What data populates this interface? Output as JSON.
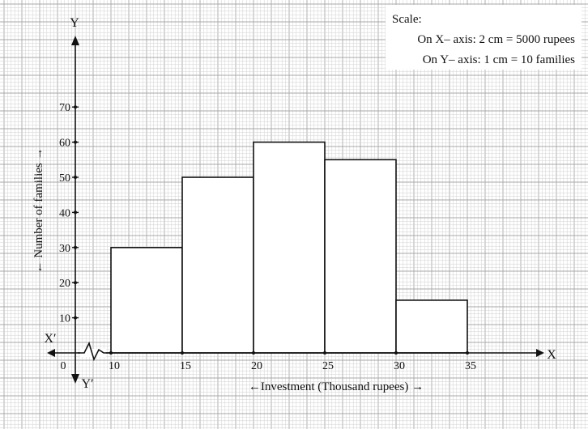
{
  "chart_data": {
    "type": "bar",
    "subtype": "histogram",
    "bins": [
      {
        "from": 10,
        "to": 15,
        "value": 30
      },
      {
        "from": 15,
        "to": 20,
        "value": 50
      },
      {
        "from": 20,
        "to": 25,
        "value": 60
      },
      {
        "from": 25,
        "to": 30,
        "value": 55
      },
      {
        "from": 30,
        "to": 35,
        "value": 15
      }
    ],
    "xlabel": "←Investment (Thousand rupees) →",
    "ylabel": "← Number of families →",
    "x_ticks": [
      "10",
      "15",
      "20",
      "25",
      "30",
      "35"
    ],
    "y_ticks": [
      "10",
      "20",
      "30",
      "40",
      "50",
      "60",
      "70"
    ],
    "origin_label": "0",
    "axis_names": {
      "x": "X",
      "x_neg": "X′",
      "y": "Y",
      "y_neg": "Y′"
    },
    "axis_break_on_x": true,
    "grid": true,
    "xlim": [
      0,
      35
    ],
    "ylim": [
      0,
      70
    ],
    "scale_note": {
      "title": "Scale:",
      "lines": [
        "On X– axis: 2 cm = 5000 rupees",
        "On Y– axis: 1 cm = 10 families"
      ],
      "placement": "top-right"
    }
  },
  "colors": {
    "grid_minor": "#d0d0d0",
    "grid_major": "#a8a8a8",
    "ink": "#111111",
    "bar_fill": "#ffffff"
  }
}
